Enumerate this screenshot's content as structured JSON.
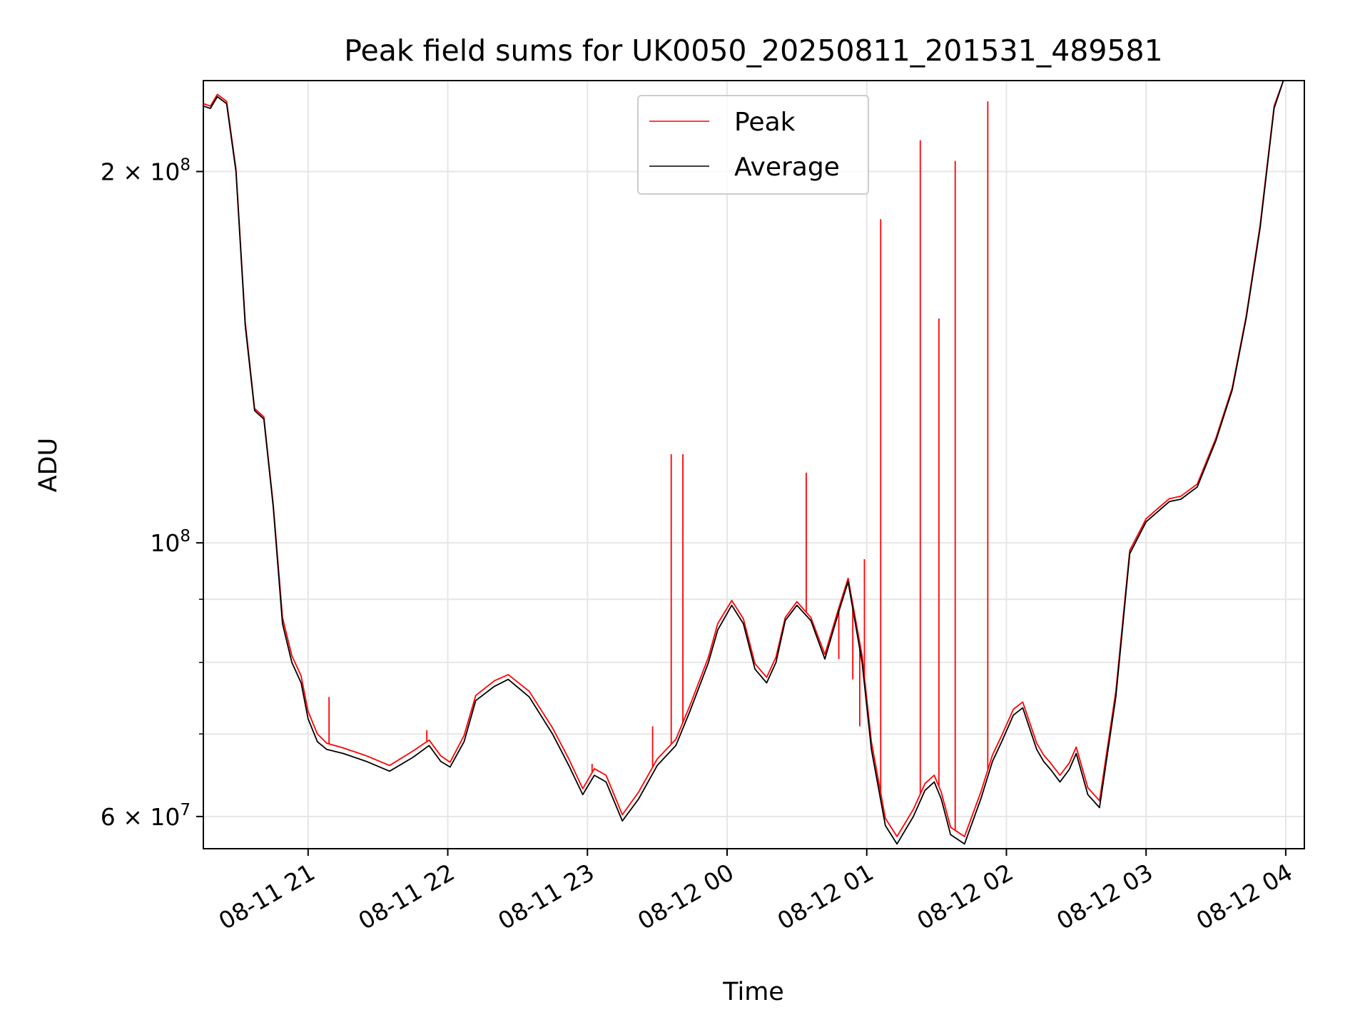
{
  "chart_data": {
    "type": "line",
    "title": "Peak field sums for UK0050_20250811_201531_489581",
    "xlabel": "Time",
    "ylabel": "ADU",
    "x_type": "time",
    "xlim": [
      "2025-08-11 20:15",
      "2025-08-12 04:08"
    ],
    "ylim": [
      56500000,
      237000000
    ],
    "yscale": "log",
    "grid": true,
    "legend_position": "upper center",
    "x_ticks": [
      {
        "label": "08-11 21",
        "t": "2025-08-11 21:00"
      },
      {
        "label": "08-11 22",
        "t": "2025-08-11 22:00"
      },
      {
        "label": "08-11 23",
        "t": "2025-08-11 23:00"
      },
      {
        "label": "08-12 00",
        "t": "2025-08-12 00:00"
      },
      {
        "label": "08-12 01",
        "t": "2025-08-12 01:00"
      },
      {
        "label": "08-12 02",
        "t": "2025-08-12 02:00"
      },
      {
        "label": "08-12 03",
        "t": "2025-08-12 03:00"
      },
      {
        "label": "08-12 04",
        "t": "2025-08-12 04:00"
      }
    ],
    "y_major_ticks": [
      {
        "label": "6 × 10",
        "exp": "7",
        "value": 60000000
      },
      {
        "label": "10",
        "exp": "8",
        "value": 100000000
      },
      {
        "label": "2 × 10",
        "exp": "8",
        "value": 200000000
      }
    ],
    "y_minor_ticks": [
      70000000,
      80000000,
      90000000
    ],
    "series": [
      {
        "name": "Average",
        "color": "#000000",
        "x": [
          "2025-08-11 20:15",
          "2025-08-11 20:18",
          "2025-08-11 20:21",
          "2025-08-11 20:25",
          "2025-08-11 20:29",
          "2025-08-11 20:33",
          "2025-08-11 20:37",
          "2025-08-11 20:41",
          "2025-08-11 20:45",
          "2025-08-11 20:49",
          "2025-08-11 20:53",
          "2025-08-11 20:57",
          "2025-08-11 21:00",
          "2025-08-11 21:04",
          "2025-08-11 21:08",
          "2025-08-11 21:15",
          "2025-08-11 21:25",
          "2025-08-11 21:35",
          "2025-08-11 21:45",
          "2025-08-11 21:52",
          "2025-08-11 21:57",
          "2025-08-11 22:01",
          "2025-08-11 22:07",
          "2025-08-11 22:12",
          "2025-08-11 22:20",
          "2025-08-11 22:26",
          "2025-08-11 22:35",
          "2025-08-11 22:45",
          "2025-08-11 22:52",
          "2025-08-11 22:58",
          "2025-08-11 23:03",
          "2025-08-11 23:08",
          "2025-08-11 23:15",
          "2025-08-11 23:22",
          "2025-08-11 23:30",
          "2025-08-11 23:38",
          "2025-08-11 23:44",
          "2025-08-11 23:52",
          "2025-08-11 23:56",
          "2025-08-12 00:02",
          "2025-08-12 00:07",
          "2025-08-12 00:12",
          "2025-08-12 00:17",
          "2025-08-12 00:21",
          "2025-08-12 00:25",
          "2025-08-12 00:30",
          "2025-08-12 00:36",
          "2025-08-12 00:42",
          "2025-08-12 00:48",
          "2025-08-12 00:52",
          "2025-08-12 00:58",
          "2025-08-12 01:02",
          "2025-08-12 01:08",
          "2025-08-12 01:13",
          "2025-08-12 01:20",
          "2025-08-12 01:25",
          "2025-08-12 01:29",
          "2025-08-12 01:32",
          "2025-08-12 01:36",
          "2025-08-12 01:42",
          "2025-08-12 01:49",
          "2025-08-12 01:54",
          "2025-08-12 01:58",
          "2025-08-12 02:03",
          "2025-08-12 02:07",
          "2025-08-12 02:13",
          "2025-08-12 02:16",
          "2025-08-12 02:19",
          "2025-08-12 02:23",
          "2025-08-12 02:27",
          "2025-08-12 02:30",
          "2025-08-12 02:35",
          "2025-08-12 02:40",
          "2025-08-12 02:47",
          "2025-08-12 02:53",
          "2025-08-12 03:00",
          "2025-08-12 03:05",
          "2025-08-12 03:10",
          "2025-08-12 03:15",
          "2025-08-12 03:22",
          "2025-08-12 03:30",
          "2025-08-12 03:37",
          "2025-08-12 03:43",
          "2025-08-12 03:49",
          "2025-08-12 03:55",
          "2025-08-12 03:59",
          "2025-08-12 04:03",
          "2025-08-12 04:08"
        ],
        "y": [
          226000000,
          225000000,
          230000000,
          227000000,
          200000000,
          150000000,
          128000000,
          126000000,
          107000000,
          86000000,
          80000000,
          77000000,
          72000000,
          69000000,
          68000000,
          67500000,
          66500000,
          65300000,
          67000000,
          68500000,
          66500000,
          65800000,
          69000000,
          74500000,
          76500000,
          77500000,
          75000000,
          70000000,
          66000000,
          62500000,
          64800000,
          64000000,
          59500000,
          62000000,
          66000000,
          68500000,
          73000000,
          80000000,
          85000000,
          89000000,
          86000000,
          79000000,
          77000000,
          80000000,
          86500000,
          89000000,
          86500000,
          80500000,
          88000000,
          93000000,
          80000000,
          68000000,
          59000000,
          57000000,
          60000000,
          63000000,
          64000000,
          62000000,
          58000000,
          57000000,
          62000000,
          66500000,
          69000000,
          72500000,
          73500000,
          68000000,
          66500000,
          65500000,
          64000000,
          65500000,
          67500000,
          62500000,
          61000000,
          75000000,
          98000000,
          104000000,
          106000000,
          108000000,
          108500000,
          111000000,
          121000000,
          133000000,
          152000000,
          180000000,
          225000000,
          237000000,
          237000000,
          237000000
        ]
      },
      {
        "name": "Peak",
        "color": "#ff0000",
        "x": [
          "2025-08-11 20:15",
          "2025-08-11 20:18",
          "2025-08-11 20:21",
          "2025-08-11 20:25",
          "2025-08-11 20:29",
          "2025-08-11 20:33",
          "2025-08-11 20:37",
          "2025-08-11 20:41",
          "2025-08-11 20:45",
          "2025-08-11 20:49",
          "2025-08-11 20:53",
          "2025-08-11 20:57",
          "2025-08-11 21:00",
          "2025-08-11 21:04",
          "2025-08-11 21:08",
          "2025-08-11 21:15",
          "2025-08-11 21:25",
          "2025-08-11 21:35",
          "2025-08-11 21:45",
          "2025-08-11 21:52",
          "2025-08-11 21:57",
          "2025-08-11 22:01",
          "2025-08-11 22:07",
          "2025-08-11 22:12",
          "2025-08-11 22:20",
          "2025-08-11 22:26",
          "2025-08-11 22:35",
          "2025-08-11 22:45",
          "2025-08-11 22:52",
          "2025-08-11 22:58",
          "2025-08-11 23:03",
          "2025-08-11 23:08",
          "2025-08-11 23:15",
          "2025-08-11 23:22",
          "2025-08-11 23:30",
          "2025-08-11 23:38",
          "2025-08-11 23:44",
          "2025-08-11 23:52",
          "2025-08-11 23:56",
          "2025-08-12 00:02",
          "2025-08-12 00:07",
          "2025-08-12 00:12",
          "2025-08-12 00:17",
          "2025-08-12 00:21",
          "2025-08-12 00:25",
          "2025-08-12 00:30",
          "2025-08-12 00:36",
          "2025-08-12 00:42",
          "2025-08-12 00:48",
          "2025-08-12 00:52",
          "2025-08-12 00:58",
          "2025-08-12 01:02",
          "2025-08-12 01:08",
          "2025-08-12 01:13",
          "2025-08-12 01:20",
          "2025-08-12 01:25",
          "2025-08-12 01:29",
          "2025-08-12 01:32",
          "2025-08-12 01:36",
          "2025-08-12 01:42",
          "2025-08-12 01:49",
          "2025-08-12 01:54",
          "2025-08-12 01:58",
          "2025-08-12 02:03",
          "2025-08-12 02:07",
          "2025-08-12 02:13",
          "2025-08-12 02:16",
          "2025-08-12 02:19",
          "2025-08-12 02:23",
          "2025-08-12 02:27",
          "2025-08-12 02:30",
          "2025-08-12 02:35",
          "2025-08-12 02:40",
          "2025-08-12 02:47",
          "2025-08-12 02:53",
          "2025-08-12 03:00",
          "2025-08-12 03:05",
          "2025-08-12 03:10",
          "2025-08-12 03:15",
          "2025-08-12 03:22",
          "2025-08-12 03:30",
          "2025-08-12 03:37",
          "2025-08-12 03:43",
          "2025-08-12 03:49",
          "2025-08-12 03:55",
          "2025-08-12 03:59",
          "2025-08-12 04:03",
          "2025-08-12 04:08"
        ],
        "y": [
          227000000,
          226000000,
          231000000,
          228000000,
          201000000,
          151000000,
          128500000,
          126500000,
          107500000,
          87000000,
          81000000,
          78000000,
          73000000,
          70000000,
          68800000,
          68200000,
          67200000,
          66000000,
          67800000,
          69200000,
          67200000,
          66400000,
          69800000,
          75200000,
          77300000,
          78200000,
          75800000,
          70800000,
          66800000,
          63200000,
          65600000,
          64800000,
          60200000,
          62800000,
          66800000,
          69300000,
          73800000,
          80800000,
          86000000,
          89800000,
          86800000,
          79800000,
          77800000,
          80800000,
          87000000,
          89600000,
          87000000,
          81200000,
          88600000,
          93600000,
          81000000,
          69000000,
          59800000,
          57800000,
          60800000,
          63800000,
          64800000,
          62800000,
          58800000,
          57800000,
          62800000,
          67300000,
          69800000,
          73300000,
          74300000,
          68800000,
          67300000,
          66300000,
          64800000,
          66300000,
          68300000,
          63300000,
          61800000,
          75800000,
          98600000,
          104600000,
          106600000,
          108600000,
          109100000,
          111600000,
          121600000,
          133600000,
          152600000,
          181000000,
          226000000,
          237000000,
          237000000,
          237000000
        ],
        "spikes": [
          {
            "t": "2025-08-11 21:09",
            "peak": 75000000
          },
          {
            "t": "2025-08-11 21:51",
            "peak": 70500000
          },
          {
            "t": "2025-08-11 23:02",
            "peak": 66200000
          },
          {
            "t": "2025-08-11 23:28",
            "peak": 71000000
          },
          {
            "t": "2025-08-11 23:36",
            "peak": 118000000
          },
          {
            "t": "2025-08-11 23:41",
            "peak": 118000000
          },
          {
            "t": "2025-08-12 00:34",
            "peak": 114000000
          },
          {
            "t": "2025-08-12 00:48",
            "peak": 80500000
          },
          {
            "t": "2025-08-12 00:54",
            "peak": 77500000
          },
          {
            "t": "2025-08-12 00:57",
            "peak": 71000000
          },
          {
            "t": "2025-08-12 00:59",
            "peak": 97000000
          },
          {
            "t": "2025-08-12 01:06",
            "peak": 183000000
          },
          {
            "t": "2025-08-12 01:23",
            "peak": 212000000
          },
          {
            "t": "2025-08-12 01:31",
            "peak": 152000000
          },
          {
            "t": "2025-08-12 01:38",
            "peak": 204000000
          },
          {
            "t": "2025-08-12 01:52",
            "peak": 228000000
          }
        ]
      }
    ],
    "legend": [
      {
        "name": "Peak",
        "color": "#ff0000"
      },
      {
        "name": "Average",
        "color": "#000000"
      }
    ]
  }
}
